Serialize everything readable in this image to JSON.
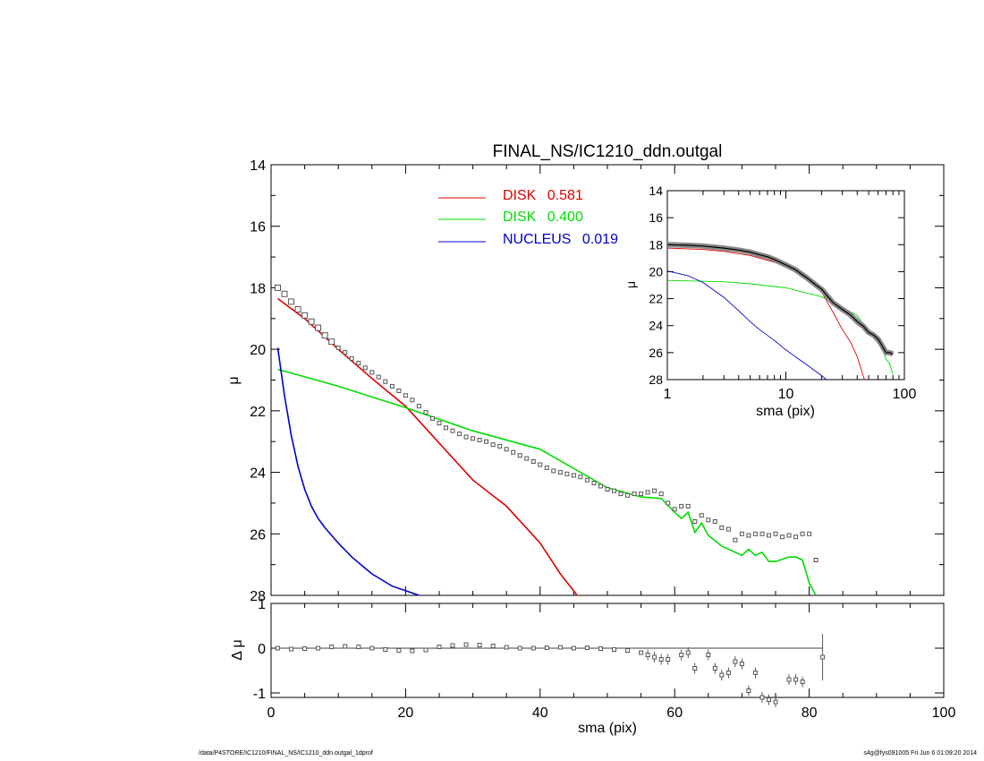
{
  "title": "FINAL_NS/IC1210_ddn.outgal",
  "footer": {
    "path": "/data/P4STORE/IC1210/FINAL_NS/IC1210_ddn.outgal_1dprof",
    "stamp": "s4g@fys091005  Fri Jun  6 01:09:20 2014"
  },
  "colors": {
    "disk1": "#dd0000",
    "disk2": "#00dd00",
    "nucleus": "#0000cc",
    "data": "#555555"
  },
  "chart_data": [
    {
      "type": "line",
      "panel": "main",
      "title": "FINAL_NS/IC1210_ddn.outgal",
      "xlabel": "sma (pix)",
      "ylabel": "μ",
      "xlim": [
        0,
        100
      ],
      "ylim": [
        28,
        14
      ],
      "x_ticks": [
        0,
        20,
        40,
        60,
        80,
        100
      ],
      "y_ticks": [
        14,
        16,
        18,
        20,
        22,
        24,
        26,
        28
      ],
      "legend_position": "top-center",
      "series": [
        {
          "name": "DISK",
          "value_label": "0.581",
          "color": "#dd0000",
          "x": [
            1,
            5,
            10,
            15,
            20,
            25,
            30,
            35,
            40,
            43,
            45.5
          ],
          "y": [
            18.35,
            19.0,
            20.0,
            20.95,
            21.85,
            23.05,
            24.25,
            25.1,
            26.3,
            27.3,
            28.0
          ]
        },
        {
          "name": "DISK",
          "value_label": "0.400",
          "color": "#00dd00",
          "x": [
            1,
            10,
            20,
            30,
            40,
            50,
            55,
            58,
            60,
            61,
            62,
            63,
            64,
            65,
            67,
            70,
            71,
            72,
            73,
            74,
            75,
            77,
            78,
            79,
            80,
            81
          ],
          "y": [
            20.65,
            21.2,
            21.9,
            22.65,
            23.25,
            24.5,
            24.8,
            24.85,
            25.3,
            25.5,
            25.3,
            25.95,
            25.65,
            26.05,
            26.4,
            26.7,
            26.5,
            26.7,
            26.6,
            26.9,
            26.9,
            26.75,
            26.75,
            26.85,
            27.6,
            28.0
          ]
        },
        {
          "name": "NUCLEUS",
          "value_label": "0.019",
          "color": "#0000cc",
          "x": [
            1,
            2,
            3,
            4,
            5,
            6,
            7,
            8,
            10,
            12,
            15,
            18,
            20,
            22
          ],
          "y": [
            19.95,
            21.5,
            22.8,
            23.8,
            24.55,
            25.1,
            25.5,
            25.8,
            26.3,
            26.75,
            27.3,
            27.7,
            27.85,
            28.0
          ]
        }
      ],
      "observed": {
        "x": [
          1,
          2,
          3,
          4,
          5,
          6,
          7,
          8,
          9,
          10,
          11,
          12,
          13,
          14,
          15,
          16,
          17,
          18,
          19,
          20,
          21,
          22,
          23,
          24,
          25,
          26,
          27,
          28,
          29,
          30,
          31,
          32,
          33,
          34,
          35,
          36,
          37,
          38,
          39,
          40,
          41,
          42,
          43,
          44,
          45,
          46,
          47,
          48,
          49,
          50,
          51,
          52,
          53,
          54,
          55,
          56,
          57,
          58,
          59,
          60,
          61,
          62,
          63,
          64,
          65,
          66,
          67,
          68,
          69,
          70,
          71,
          72,
          73,
          74,
          75,
          76,
          77,
          78,
          79,
          80,
          81
        ],
        "y": [
          18.0,
          18.2,
          18.45,
          18.7,
          18.9,
          19.1,
          19.3,
          19.55,
          19.75,
          19.95,
          20.1,
          20.3,
          20.45,
          20.6,
          20.75,
          20.9,
          21.05,
          21.2,
          21.35,
          21.5,
          21.65,
          21.85,
          22.05,
          22.25,
          22.4,
          22.55,
          22.65,
          22.75,
          22.85,
          22.9,
          22.95,
          23.0,
          23.1,
          23.15,
          23.25,
          23.35,
          23.45,
          23.55,
          23.65,
          23.75,
          23.85,
          23.95,
          24.0,
          24.05,
          24.1,
          24.15,
          24.25,
          24.35,
          24.45,
          24.55,
          24.6,
          24.7,
          24.75,
          24.7,
          24.7,
          24.65,
          24.6,
          24.7,
          25.0,
          25.2,
          25.1,
          25.1,
          25.6,
          25.4,
          25.55,
          25.6,
          25.8,
          25.85,
          26.2,
          26.0,
          26.05,
          26.0,
          26.0,
          26.05,
          26.0,
          26.1,
          26.05,
          26.1,
          26.0,
          26.0,
          26.85
        ]
      }
    },
    {
      "type": "scatter",
      "panel": "residual",
      "xlabel": "sma (pix)",
      "ylabel": "Δ μ",
      "xlim": [
        0,
        100
      ],
      "ylim": [
        -1.1,
        1.0
      ],
      "x_ticks": [
        0,
        20,
        40,
        60,
        80,
        100
      ],
      "y_ticks": [
        -1,
        0,
        1
      ],
      "series": [
        {
          "name": "",
          "x": [
            1,
            3,
            5,
            7,
            9,
            11,
            13,
            15,
            17,
            19,
            21,
            23,
            25,
            27,
            29,
            31,
            33,
            35,
            37,
            39,
            41,
            43,
            45,
            47,
            49,
            51,
            53,
            55,
            56,
            57,
            58,
            59,
            61,
            62,
            63,
            65,
            66,
            67,
            68,
            69,
            70,
            71,
            72,
            73,
            74,
            75,
            77,
            78,
            79,
            82
          ],
          "y": [
            0.0,
            -0.02,
            -0.01,
            0.0,
            0.03,
            0.04,
            0.03,
            0.0,
            -0.03,
            -0.05,
            -0.06,
            -0.04,
            0.03,
            0.06,
            0.08,
            0.07,
            0.05,
            0.02,
            0.0,
            0.0,
            0.01,
            0.02,
            0.0,
            0.01,
            -0.01,
            -0.03,
            -0.05,
            -0.1,
            -0.15,
            -0.2,
            -0.25,
            -0.25,
            -0.15,
            -0.1,
            -0.45,
            -0.15,
            -0.45,
            -0.6,
            -0.55,
            -0.3,
            -0.35,
            -0.95,
            -0.55,
            -1.1,
            -1.15,
            -1.2,
            -0.7,
            -0.7,
            -0.75,
            -0.2
          ]
        }
      ]
    },
    {
      "type": "line",
      "panel": "inset",
      "xscale": "log",
      "xlabel": "sma (pix)",
      "ylabel": "μ",
      "xlim": [
        1,
        100
      ],
      "ylim": [
        28,
        14
      ],
      "x_ticks": [
        1,
        10,
        100
      ],
      "y_ticks": [
        14,
        16,
        18,
        20,
        22,
        24,
        26,
        28
      ],
      "series": [
        {
          "name": "DISK",
          "color": "#dd0000",
          "x": [
            1,
            2,
            3,
            5,
            8,
            12,
            15,
            20,
            25,
            30,
            35,
            40,
            46
          ],
          "y": [
            18.25,
            18.35,
            18.5,
            18.8,
            19.3,
            20.0,
            20.6,
            21.5,
            23.0,
            24.3,
            25.2,
            26.3,
            28.0
          ]
        },
        {
          "name": "DISK",
          "color": "#00dd00",
          "x": [
            1,
            3,
            5,
            10,
            20,
            30,
            40,
            50,
            60,
            65,
            70,
            75,
            80
          ],
          "y": [
            20.65,
            20.75,
            20.9,
            21.2,
            21.85,
            22.65,
            23.25,
            24.5,
            25.3,
            25.65,
            26.5,
            26.8,
            27.6
          ]
        },
        {
          "name": "NUCLEUS",
          "color": "#0000cc",
          "x": [
            1,
            1.5,
            2,
            3,
            4,
            5,
            6,
            8,
            10,
            15,
            20,
            22
          ],
          "y": [
            19.95,
            20.3,
            20.8,
            21.9,
            22.9,
            23.7,
            24.3,
            25.1,
            25.8,
            26.9,
            27.7,
            28.0
          ]
        }
      ],
      "observed": {
        "x": [
          1,
          1.5,
          2,
          3,
          4,
          5,
          6,
          7,
          8,
          10,
          12,
          15,
          18,
          20,
          25,
          30,
          35,
          40,
          45,
          50,
          55,
          60,
          65,
          70,
          75,
          80
        ],
        "y": [
          18.0,
          18.05,
          18.1,
          18.25,
          18.4,
          18.55,
          18.75,
          18.9,
          19.1,
          19.5,
          19.85,
          20.45,
          21.0,
          21.3,
          22.3,
          22.8,
          23.2,
          23.7,
          24.05,
          24.5,
          24.7,
          25.0,
          25.5,
          26.0,
          26.0,
          26.1
        ]
      }
    }
  ]
}
